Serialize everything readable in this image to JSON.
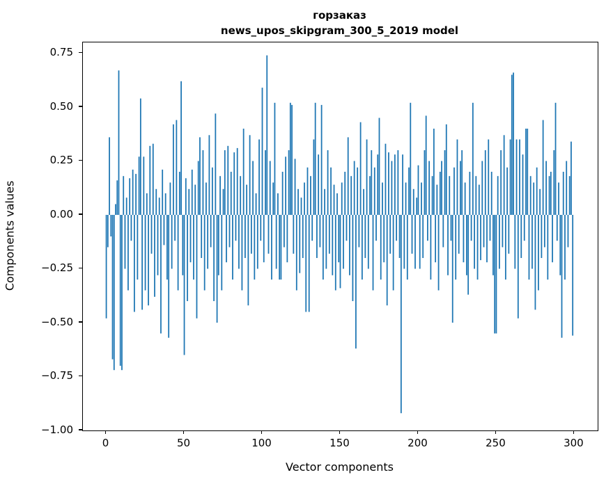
{
  "figure": {
    "title": "горзаказ",
    "subtitle": "news_upos_skipgram_300_5_2019 model",
    "xlabel": "Vector components",
    "ylabel": "Components values"
  },
  "chart_data": {
    "type": "bar",
    "title": "горзаказ",
    "subtitle": "news_upos_skipgram_300_5_2019 model",
    "xlabel": "Vector components",
    "ylabel": "Components values",
    "legend": "none",
    "grid": false,
    "bar_color": "#1f77b4",
    "xlim": [
      -15,
      315
    ],
    "ylim": [
      -1.0,
      0.8
    ],
    "xticks": [
      0,
      50,
      100,
      150,
      200,
      250,
      300
    ],
    "yticks": [
      0.75,
      0.5,
      0.25,
      0.0,
      -0.25,
      -0.5,
      -0.75,
      -1.0
    ],
    "x_start": 0,
    "values": [
      -0.48,
      -0.15,
      0.36,
      -0.1,
      -0.67,
      -0.72,
      0.05,
      0.16,
      0.67,
      -0.7,
      -0.72,
      0.18,
      -0.25,
      0.08,
      -0.35,
      0.17,
      -0.12,
      0.21,
      -0.45,
      0.19,
      -0.3,
      0.27,
      0.54,
      -0.44,
      0.27,
      -0.35,
      0.1,
      -0.42,
      0.32,
      -0.18,
      0.33,
      -0.38,
      0.12,
      -0.28,
      0.08,
      -0.55,
      0.21,
      -0.14,
      0.1,
      -0.3,
      -0.57,
      0.15,
      -0.25,
      0.42,
      -0.12,
      0.44,
      -0.35,
      0.2,
      0.62,
      -0.28,
      -0.65,
      0.17,
      -0.4,
      0.12,
      -0.22,
      0.21,
      -0.3,
      0.14,
      -0.48,
      0.25,
      0.36,
      -0.2,
      0.3,
      -0.35,
      0.15,
      -0.25,
      0.37,
      -0.15,
      0.22,
      -0.4,
      0.47,
      -0.5,
      -0.28,
      0.18,
      -0.35,
      0.12,
      0.3,
      -0.22,
      0.32,
      -0.15,
      0.2,
      -0.3,
      0.29,
      -0.12,
      0.31,
      -0.25,
      0.18,
      -0.35,
      0.4,
      -0.2,
      0.14,
      -0.42,
      0.37,
      -0.18,
      0.25,
      -0.3,
      0.1,
      -0.25,
      0.35,
      -0.12,
      0.59,
      -0.22,
      0.3,
      0.74,
      -0.18,
      0.25,
      -0.3,
      0.15,
      0.52,
      -0.25,
      0.1,
      -0.3,
      -0.3,
      0.2,
      -0.15,
      0.27,
      -0.22,
      0.3,
      0.52,
      0.51,
      -0.18,
      0.26,
      -0.35,
      0.12,
      -0.27,
      0.08,
      -0.2,
      0.15,
      -0.45,
      0.22,
      -0.45,
      0.18,
      -0.12,
      0.35,
      0.52,
      -0.2,
      0.28,
      -0.15,
      0.51,
      -0.3,
      0.12,
      -0.25,
      0.3,
      -0.18,
      0.22,
      -0.28,
      0.14,
      -0.35,
      0.1,
      -0.22,
      -0.34,
      0.15,
      -0.25,
      0.2,
      -0.12,
      0.36,
      -0.28,
      0.18,
      -0.4,
      0.25,
      -0.62,
      0.22,
      -0.15,
      0.43,
      -0.3,
      0.12,
      -0.2,
      0.35,
      -0.25,
      0.18,
      0.3,
      -0.35,
      0.22,
      -0.12,
      0.28,
      0.45,
      -0.3,
      0.15,
      -0.22,
      0.33,
      -0.42,
      0.29,
      -0.18,
      0.25,
      -0.35,
      0.28,
      -0.12,
      0.3,
      -0.2,
      -0.92,
      0.28,
      -0.25,
      0.15,
      -0.3,
      0.22,
      0.52,
      -0.18,
      0.12,
      -0.25,
      0.08,
      0.23,
      -0.25,
      0.15,
      -0.2,
      0.3,
      0.46,
      -0.12,
      0.25,
      -0.3,
      0.18,
      0.4,
      -0.22,
      0.14,
      -0.35,
      0.2,
      0.25,
      -0.15,
      0.3,
      0.42,
      -0.28,
      0.18,
      -0.12,
      -0.5,
      0.22,
      -0.3,
      0.35,
      -0.18,
      0.25,
      0.3,
      -0.22,
      0.15,
      -0.28,
      -0.37,
      0.2,
      -0.12,
      0.52,
      -0.25,
      0.18,
      -0.3,
      0.14,
      -0.21,
      0.25,
      -0.15,
      0.3,
      -0.22,
      0.35,
      -0.12,
      0.2,
      -0.28,
      -0.55,
      -0.55,
      0.18,
      -0.25,
      0.3,
      -0.15,
      0.37,
      -0.3,
      0.22,
      -0.18,
      0.35,
      0.65,
      0.66,
      -0.25,
      0.35,
      -0.48,
      0.35,
      -0.2,
      0.28,
      -0.12,
      0.4,
      0.4,
      -0.3,
      0.18,
      -0.25,
      0.15,
      -0.44,
      0.22,
      -0.35,
      0.12,
      -0.2,
      0.44,
      -0.15,
      0.25,
      -0.3,
      0.18,
      0.2,
      -0.22,
      0.3,
      0.52,
      -0.12,
      0.15,
      -0.28,
      -0.57,
      0.2,
      -0.3,
      0.25,
      -0.15,
      0.18,
      0.34,
      -0.56
    ]
  }
}
